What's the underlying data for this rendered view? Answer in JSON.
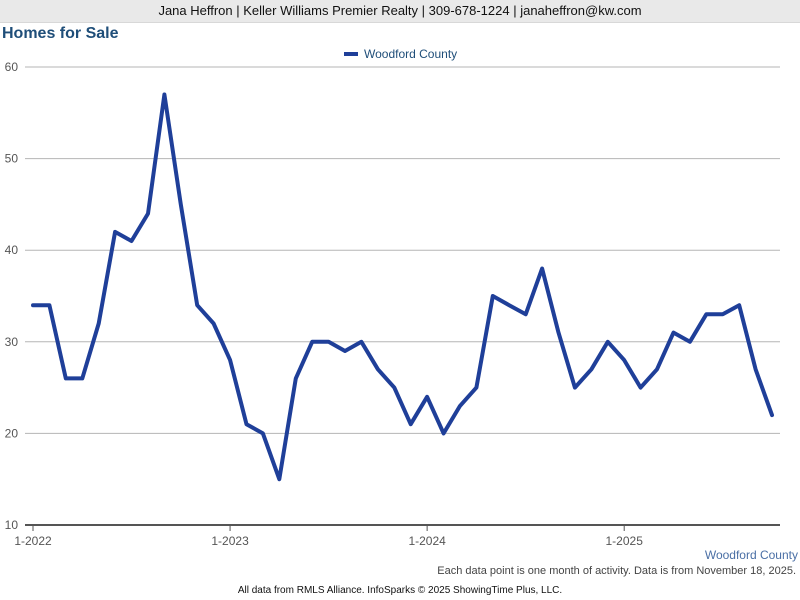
{
  "header": {
    "contact_line": "Jana Heffron | Keller Williams Premier Realty | 309-678-1224 | janaheffron@kw.com"
  },
  "title": "Homes for Sale",
  "footer": {
    "series_caption": "Woodford County",
    "note": "Each data point is one month of activity. Data is from November 18, 2025.",
    "source": "All data from RMLS Alliance. InfoSparks © 2025 ShowingTime Plus, LLC."
  },
  "colors": {
    "series": "#1f3f99",
    "grid": "#b5b5b5",
    "axis": "#555555"
  },
  "chart_data": {
    "type": "line",
    "title": "Homes for Sale",
    "xlabel": "",
    "ylabel": "",
    "ylim": [
      10,
      60
    ],
    "yticks": [
      "10",
      "20",
      "30",
      "40",
      "50",
      "60"
    ],
    "xtick_labels": [
      "1-2022",
      "1-2023",
      "1-2024",
      "1-2025"
    ],
    "grid": true,
    "legend": "top-center",
    "x": [
      "1-2022",
      "2-2022",
      "3-2022",
      "4-2022",
      "5-2022",
      "6-2022",
      "7-2022",
      "8-2022",
      "9-2022",
      "10-2022",
      "11-2022",
      "12-2022",
      "1-2023",
      "2-2023",
      "3-2023",
      "4-2023",
      "5-2023",
      "6-2023",
      "7-2023",
      "8-2023",
      "9-2023",
      "10-2023",
      "11-2023",
      "12-2023",
      "1-2024",
      "2-2024",
      "3-2024",
      "4-2024",
      "5-2024",
      "6-2024",
      "7-2024",
      "8-2024",
      "9-2024",
      "10-2024",
      "11-2024",
      "12-2024",
      "1-2025",
      "2-2025",
      "3-2025",
      "4-2025",
      "5-2025",
      "6-2025",
      "7-2025",
      "8-2025",
      "9-2025",
      "10-2025"
    ],
    "series": [
      {
        "name": "Woodford County",
        "values": [
          34,
          34,
          26,
          26,
          32,
          42,
          41,
          44,
          57,
          45,
          34,
          32,
          28,
          21,
          20,
          15,
          26,
          30,
          30,
          29,
          30,
          27,
          25,
          21,
          24,
          20,
          23,
          25,
          35,
          34,
          33,
          38,
          31,
          25,
          27,
          30,
          28,
          25,
          27,
          31,
          30,
          33,
          33,
          34,
          27,
          22
        ]
      }
    ]
  }
}
